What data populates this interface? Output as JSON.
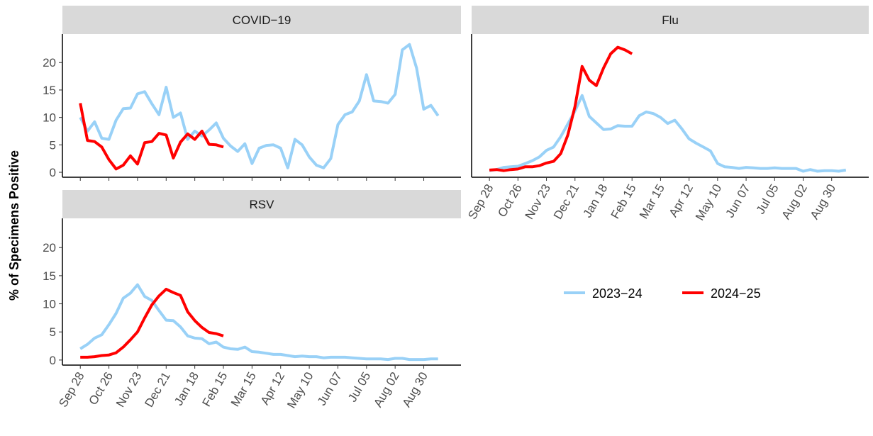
{
  "ylabel": "% of Specimens Positive",
  "chart_data": [
    {
      "type": "line",
      "title": "COVID−19",
      "categories": [
        "Sep 28",
        null,
        null,
        null,
        "Oct 26",
        null,
        null,
        null,
        "Nov 23",
        null,
        null,
        null,
        "Dec 21",
        null,
        null,
        null,
        "Jan 18",
        null,
        null,
        null,
        "Feb 15",
        null,
        null,
        null,
        "Mar 15",
        null,
        null,
        null,
        "Apr 12",
        null,
        null,
        null,
        "May 10",
        null,
        null,
        null,
        "Jun 07",
        null,
        null,
        null,
        "Jul 05",
        null,
        null,
        null,
        "Aug 02",
        null,
        null,
        null,
        "Aug 30",
        null,
        null
      ],
      "ylim": [
        -0.9,
        25.2
      ],
      "yticks": [
        0,
        5,
        10,
        15,
        20
      ],
      "series": [
        {
          "name": "2023−24",
          "color": "#99d1f7",
          "values": [
            10.0,
            7.5,
            9.2,
            6.2,
            6.0,
            9.5,
            11.6,
            11.7,
            14.3,
            14.7,
            12.5,
            10.5,
            15.5,
            10.0,
            10.8,
            6.0,
            7.5,
            6.6,
            7.7,
            9.0,
            6.2,
            4.8,
            3.8,
            5.2,
            1.6,
            4.4,
            4.9,
            5.0,
            4.4,
            0.8,
            6.0,
            5.0,
            2.8,
            1.3,
            0.8,
            2.5,
            8.7,
            10.5,
            11.0,
            13.0,
            17.8,
            13.0,
            12.9,
            12.6,
            14.2,
            22.3,
            23.3,
            19.0,
            11.5,
            12.2,
            10.3
          ]
        },
        {
          "name": "2024−25",
          "color": "#ff0000",
          "values": [
            12.6,
            5.8,
            5.6,
            4.6,
            2.3,
            0.6,
            1.3,
            3.0,
            1.5,
            5.4,
            5.6,
            7.1,
            6.8,
            2.6,
            5.5,
            7.0,
            6.0,
            7.5,
            5.1,
            5.0,
            4.6,
            null,
            null,
            null,
            null,
            null,
            null,
            null,
            null,
            null,
            null,
            null,
            null,
            null,
            null,
            null,
            null,
            null,
            null,
            null,
            null,
            null,
            null,
            null,
            null,
            null,
            null,
            null,
            null,
            null,
            null
          ]
        }
      ]
    },
    {
      "type": "line",
      "title": "Flu",
      "categories": [
        "Sep 28",
        null,
        null,
        null,
        "Oct 26",
        null,
        null,
        null,
        "Nov 23",
        null,
        null,
        null,
        "Dec 21",
        null,
        null,
        null,
        "Jan 18",
        null,
        null,
        null,
        "Feb 15",
        null,
        null,
        null,
        "Mar 15",
        null,
        null,
        null,
        "Apr 12",
        null,
        null,
        null,
        "May 10",
        null,
        null,
        null,
        "Jun 07",
        null,
        null,
        null,
        "Jul 05",
        null,
        null,
        null,
        "Aug 02",
        null,
        null,
        null,
        "Aug 30",
        null,
        null
      ],
      "ylim": [
        -0.9,
        25.2
      ],
      "yticks": [
        0,
        5,
        10,
        15,
        20
      ],
      "series": [
        {
          "name": "2023−24",
          "color": "#99d1f7",
          "values": [
            0.3,
            0.5,
            0.9,
            1.0,
            1.1,
            1.6,
            2.1,
            2.8,
            4.0,
            4.6,
            6.5,
            8.8,
            11.2,
            14.0,
            10.2,
            9.0,
            7.8,
            7.9,
            8.5,
            8.4,
            8.4,
            10.3,
            11.0,
            10.7,
            10.0,
            8.9,
            9.5,
            7.9,
            6.1,
            5.3,
            4.6,
            3.9,
            1.6,
            1.0,
            0.9,
            0.7,
            0.9,
            0.8,
            0.7,
            0.7,
            0.8,
            0.7,
            0.7,
            0.7,
            0.2,
            0.5,
            0.2,
            0.3,
            0.3,
            0.2,
            0.4
          ]
        },
        {
          "name": "2024−25",
          "color": "#ff0000",
          "values": [
            0.4,
            0.5,
            0.3,
            0.5,
            0.6,
            1.0,
            1.0,
            1.2,
            1.7,
            2.0,
            3.4,
            6.8,
            12.0,
            19.3,
            16.8,
            15.8,
            19.0,
            21.6,
            22.8,
            22.3,
            21.6,
            null,
            null,
            null,
            null,
            null,
            null,
            null,
            null,
            null,
            null,
            null,
            null,
            null,
            null,
            null,
            null,
            null,
            null,
            null,
            null,
            null,
            null,
            null,
            null,
            null,
            null,
            null,
            null,
            null,
            null
          ]
        }
      ]
    },
    {
      "type": "line",
      "title": "RSV",
      "categories": [
        "Sep 28",
        null,
        null,
        null,
        "Oct 26",
        null,
        null,
        null,
        "Nov 23",
        null,
        null,
        null,
        "Dec 21",
        null,
        null,
        null,
        "Jan 18",
        null,
        null,
        null,
        "Feb 15",
        null,
        null,
        null,
        "Mar 15",
        null,
        null,
        null,
        "Apr 12",
        null,
        null,
        null,
        "May 10",
        null,
        null,
        null,
        "Jun 07",
        null,
        null,
        null,
        "Jul 05",
        null,
        null,
        null,
        "Aug 02",
        null,
        null,
        null,
        "Aug 30",
        null,
        null
      ],
      "ylim": [
        -0.9,
        25.2
      ],
      "yticks": [
        0,
        5,
        10,
        15,
        20
      ],
      "series": [
        {
          "name": "2023−24",
          "color": "#99d1f7",
          "values": [
            2.0,
            2.8,
            3.9,
            4.5,
            6.3,
            8.3,
            11.0,
            11.9,
            13.4,
            11.3,
            10.6,
            8.8,
            7.1,
            7.0,
            5.9,
            4.3,
            3.9,
            3.8,
            2.9,
            3.2,
            2.3,
            2.0,
            1.9,
            2.3,
            1.5,
            1.4,
            1.2,
            1.0,
            1.0,
            0.8,
            0.6,
            0.7,
            0.6,
            0.6,
            0.4,
            0.5,
            0.5,
            0.5,
            0.4,
            0.3,
            0.2,
            0.2,
            0.2,
            0.1,
            0.3,
            0.3,
            0.1,
            0.1,
            0.1,
            0.2,
            0.2
          ]
        },
        {
          "name": "2024−25",
          "color": "#ff0000",
          "values": [
            0.5,
            0.5,
            0.6,
            0.8,
            0.9,
            1.3,
            2.3,
            3.6,
            5.0,
            7.5,
            9.8,
            11.4,
            12.6,
            12.0,
            11.5,
            8.6,
            7.0,
            5.8,
            4.9,
            4.7,
            4.3,
            null,
            null,
            null,
            null,
            null,
            null,
            null,
            null,
            null,
            null,
            null,
            null,
            null,
            null,
            null,
            null,
            null,
            null,
            null,
            null,
            null,
            null,
            null,
            null,
            null,
            null,
            null,
            null,
            null,
            null
          ]
        }
      ]
    }
  ]
}
